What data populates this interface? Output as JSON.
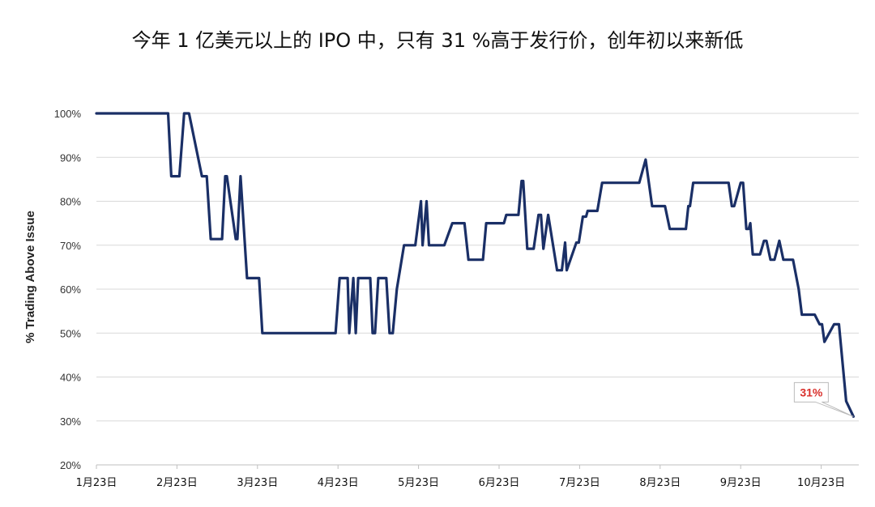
{
  "chart_data": {
    "type": "line",
    "title": "今年 1 亿美元以上的 IPO 中，只有 31 %高于发行价，创年初以来新低",
    "ylabel": "% Trading Above Issue",
    "xlabel": "",
    "ylim": [
      20,
      100
    ],
    "yticks": [
      "20%",
      "30%",
      "40%",
      "50%",
      "60%",
      "70%",
      "80%",
      "90%",
      "100%"
    ],
    "xticks": [
      "1月23日",
      "2月23日",
      "3月23日",
      "4月23日",
      "5月23日",
      "6月23日",
      "7月23日",
      "8月23日",
      "9月23日",
      "10月23日"
    ],
    "grid": "horizontal",
    "line_color": "#1a2f66",
    "annotation": {
      "text": "31%",
      "value": 31,
      "color": "#d9302c"
    },
    "series": [
      {
        "values": [
          [
            0,
            100
          ],
          [
            0.89,
            100
          ],
          [
            0.93,
            85.7
          ],
          [
            1.03,
            85.7
          ],
          [
            1.09,
            100
          ],
          [
            1.15,
            100
          ],
          [
            1.31,
            85.7
          ],
          [
            1.37,
            85.7
          ],
          [
            1.42,
            71.4
          ],
          [
            1.56,
            71.4
          ],
          [
            1.6,
            85.7
          ],
          [
            1.62,
            85.7
          ],
          [
            1.73,
            71.4
          ],
          [
            1.75,
            71.4
          ],
          [
            1.79,
            85.7
          ],
          [
            1.87,
            62.5
          ],
          [
            2.02,
            62.5
          ],
          [
            2.06,
            50
          ],
          [
            2.97,
            50
          ],
          [
            3.02,
            62.5
          ],
          [
            3.12,
            62.5
          ],
          [
            3.14,
            50
          ],
          [
            3.19,
            62.5
          ],
          [
            3.22,
            50
          ],
          [
            3.25,
            62.5
          ],
          [
            3.4,
            62.5
          ],
          [
            3.43,
            50
          ],
          [
            3.46,
            50
          ],
          [
            3.5,
            62.5
          ],
          [
            3.6,
            62.5
          ],
          [
            3.64,
            50
          ],
          [
            3.68,
            50
          ],
          [
            3.73,
            60
          ],
          [
            3.82,
            70
          ],
          [
            3.96,
            70
          ],
          [
            4.03,
            80
          ],
          [
            4.05,
            70
          ],
          [
            4.1,
            80
          ],
          [
            4.13,
            70
          ],
          [
            4.32,
            70
          ],
          [
            4.42,
            75
          ],
          [
            4.57,
            75
          ],
          [
            4.62,
            66.7
          ],
          [
            4.8,
            66.7
          ],
          [
            4.84,
            75
          ],
          [
            5.06,
            75
          ],
          [
            5.09,
            76.9
          ],
          [
            5.24,
            76.9
          ],
          [
            5.28,
            84.6
          ],
          [
            5.3,
            84.6
          ],
          [
            5.35,
            69.2
          ],
          [
            5.43,
            69.2
          ],
          [
            5.49,
            76.9
          ],
          [
            5.52,
            76.9
          ],
          [
            5.55,
            69.2
          ],
          [
            5.61,
            76.9
          ],
          [
            5.72,
            64.3
          ],
          [
            5.78,
            64.3
          ],
          [
            5.82,
            70.6
          ],
          [
            5.84,
            64.3
          ],
          [
            5.96,
            70.6
          ],
          [
            5.99,
            70.6
          ],
          [
            6.04,
            76.5
          ],
          [
            6.08,
            76.5
          ],
          [
            6.1,
            77.8
          ],
          [
            6.22,
            77.8
          ],
          [
            6.28,
            84.2
          ],
          [
            6.74,
            84.2
          ],
          [
            6.82,
            89.5
          ],
          [
            6.9,
            78.9
          ],
          [
            7.06,
            78.9
          ],
          [
            7.12,
            73.7
          ],
          [
            7.32,
            73.7
          ],
          [
            7.35,
            78.9
          ],
          [
            7.37,
            78.9
          ],
          [
            7.41,
            84.2
          ],
          [
            7.85,
            84.2
          ],
          [
            7.89,
            78.9
          ],
          [
            7.92,
            78.9
          ],
          [
            8.0,
            84.2
          ],
          [
            8.03,
            84.2
          ],
          [
            8.07,
            73.7
          ],
          [
            8.1,
            73.7
          ],
          [
            8.12,
            75
          ],
          [
            8.15,
            67.9
          ],
          [
            8.24,
            67.9
          ],
          [
            8.29,
            71
          ],
          [
            8.32,
            71
          ],
          [
            8.37,
            66.7
          ],
          [
            8.42,
            66.7
          ],
          [
            8.48,
            71
          ],
          [
            8.53,
            66.7
          ],
          [
            8.65,
            66.7
          ],
          [
            8.72,
            60
          ],
          [
            8.76,
            54.2
          ],
          [
            8.92,
            54.2
          ],
          [
            8.98,
            52
          ],
          [
            9.01,
            52
          ],
          [
            9.04,
            48
          ],
          [
            9.16,
            52
          ],
          [
            9.22,
            52
          ],
          [
            9.31,
            34.5
          ],
          [
            9.4,
            31
          ]
        ]
      }
    ]
  }
}
